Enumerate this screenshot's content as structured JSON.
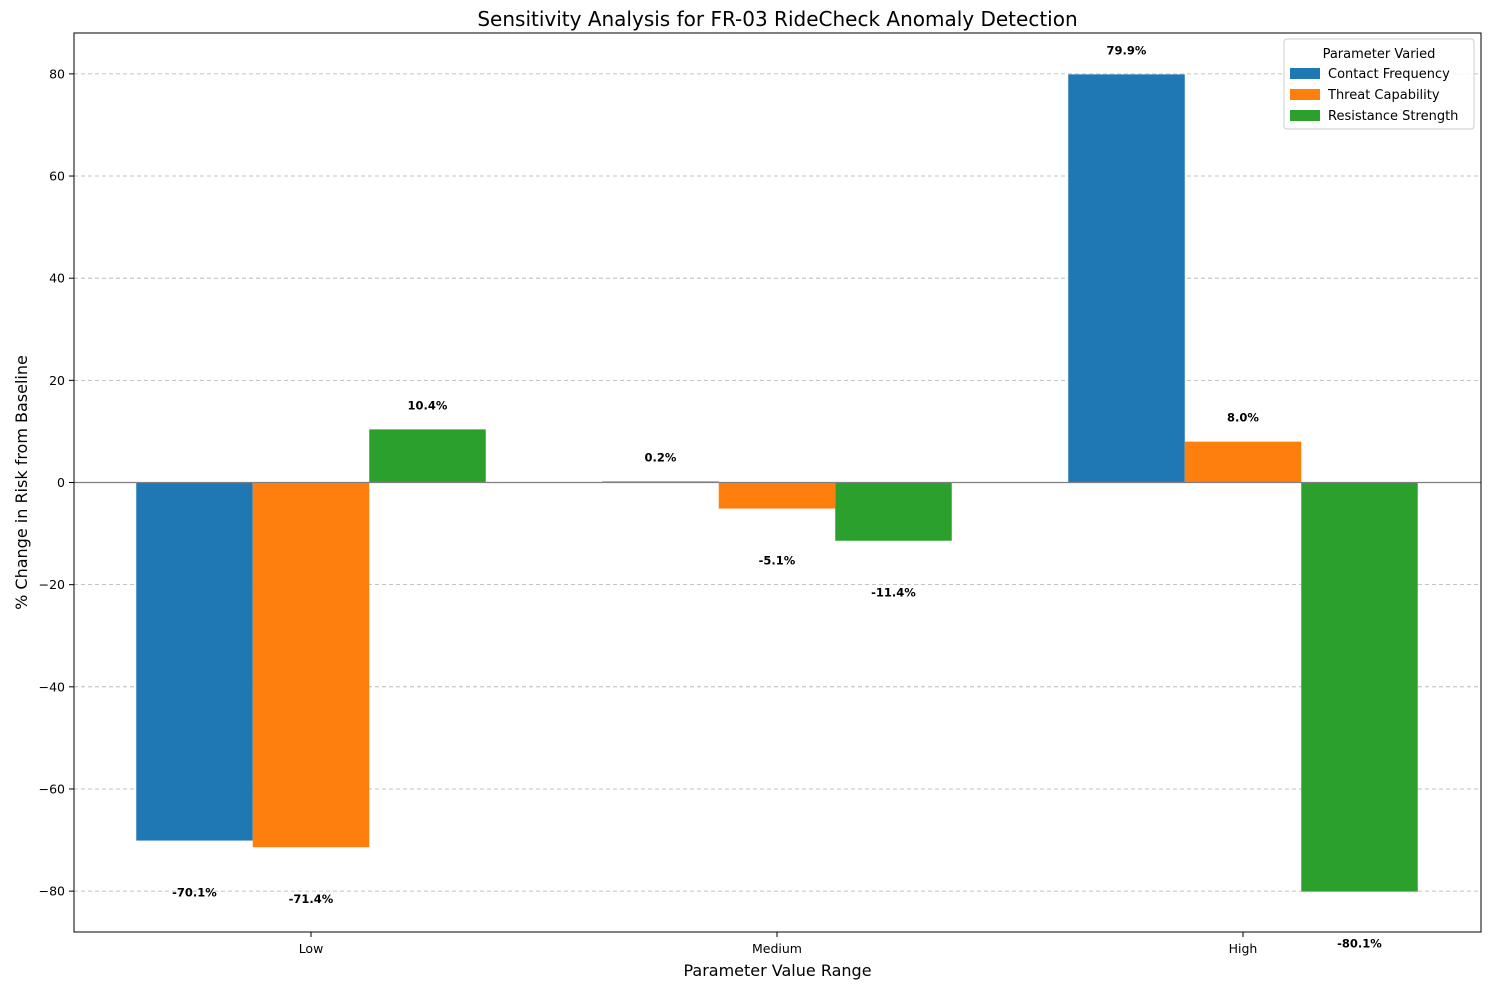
{
  "chart_data": {
    "type": "bar",
    "title": "Sensitivity Analysis for FR-03 RideCheck Anomaly Detection",
    "xlabel": "Parameter Value Range",
    "ylabel": "% Change in Risk from Baseline",
    "categories": [
      "Low",
      "Medium",
      "High"
    ],
    "series": [
      {
        "name": "Contact Frequency",
        "color": "#1f77b4",
        "values": [
          -70.1,
          0.2,
          79.9
        ],
        "labels": [
          "-70.1%",
          "0.2%",
          "79.9%"
        ]
      },
      {
        "name": "Threat Capability",
        "color": "#ff7f0e",
        "values": [
          -71.4,
          -5.1,
          8.0
        ],
        "labels": [
          "-71.4%",
          "-5.1%",
          "8.0%"
        ]
      },
      {
        "name": "Resistance Strength",
        "color": "#2ca02c",
        "values": [
          10.4,
          -11.4,
          -80.1
        ],
        "labels": [
          "10.4%",
          "-11.4%",
          "-80.1%"
        ]
      }
    ],
    "ylim": [
      -88,
      88
    ],
    "yticks": [
      -80,
      -60,
      -40,
      -20,
      0,
      20,
      40,
      60,
      80
    ],
    "ytick_labels": [
      "−80",
      "−60",
      "−40",
      "−20",
      "0",
      "20",
      "40",
      "60",
      "80"
    ],
    "grid": "y-dashed",
    "baseline": 0,
    "legend": {
      "title": "Parameter Varied",
      "position": "top-right"
    }
  }
}
